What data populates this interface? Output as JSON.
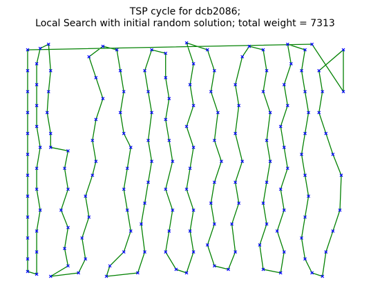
{
  "chart_data": {
    "type": "line",
    "title": [
      "TSP cycle for dcb2086;",
      "Local Search with initial random solution; total weight = 7313"
    ],
    "closed": true,
    "axis": false,
    "marker": "x",
    "x": [
      2,
      2,
      2,
      2,
      2,
      2,
      2,
      2,
      2,
      2,
      2,
      2,
      15,
      15,
      15,
      20,
      15,
      15,
      20,
      15,
      15,
      15,
      15,
      20,
      32,
      35,
      32,
      30,
      35,
      35,
      60,
      55,
      60,
      50,
      60,
      55,
      60,
      35,
      75,
      85,
      80,
      90,
      85,
      95,
      100,
      95,
      100,
      110,
      100,
      90,
      110,
      130,
      135,
      140,
      135,
      140,
      150,
      145,
      140,
      145,
      150,
      140,
      120,
      115,
      160,
      170,
      165,
      170,
      175,
      180,
      175,
      180,
      175,
      170,
      180,
      200,
      200,
      205,
      200,
      205,
      210,
      200,
      210,
      205,
      200,
      215,
      230,
      240,
      235,
      240,
      230,
      235,
      240,
      230,
      240,
      235,
      240,
      230,
      260,
      270,
      265,
      275,
      270,
      280,
      270,
      265,
      270,
      260,
      270,
      290,
      300,
      295,
      305,
      300,
      310,
      300,
      305,
      300,
      310,
      320,
      340,
      345,
      340,
      350,
      345,
      350,
      345,
      340,
      345,
      335,
      340,
      365,
      370,
      360,
      370,
      365,
      375,
      370,
      365,
      375,
      370,
      380,
      375,
      400,
      395,
      400,
      405,
      400,
      395,
      400,
      405,
      400,
      395,
      400,
      410,
      425,
      430,
      440,
      450,
      452,
      440,
      430,
      420,
      425,
      420,
      455,
      455,
      410
    ],
    "series": [
      {
        "color": "#008000",
        "marker_color": "#0000ff",
        "values": [
          330,
          300,
          270,
          240,
          210,
          180,
          150,
          120,
          90,
          60,
          30,
          12,
          8,
          40,
          70,
          100,
          130,
          160,
          190,
          220,
          250,
          280,
          310,
          332,
          338,
          300,
          270,
          240,
          210,
          190,
          185,
          160,
          130,
          100,
          75,
          45,
          20,
          5,
          10,
          30,
          60,
          90,
          120,
          150,
          170,
          200,
          230,
          260,
          290,
          320,
          335,
          330,
          300,
          270,
          240,
          210,
          190,
          160,
          130,
          100,
          70,
          40,
          20,
          5,
          10,
          40,
          80,
          110,
          140,
          170,
          200,
          240,
          270,
          300,
          330,
          325,
          290,
          260,
          230,
          200,
          170,
          130,
          100,
          70,
          40,
          15,
          10,
          40,
          70,
          100,
          130,
          160,
          190,
          220,
          250,
          280,
          310,
          340,
          330,
          300,
          270,
          240,
          200,
          170,
          140,
          110,
          80,
          50,
          20,
          15,
          40,
          80,
          110,
          140,
          170,
          210,
          250,
          280,
          320,
          335,
          330,
          300,
          270,
          240,
          200,
          170,
          140,
          110,
          80,
          50,
          15,
          10,
          40,
          70,
          100,
          130,
          160,
          190,
          220,
          250,
          280,
          310,
          338,
          330,
          300,
          270,
          240,
          210,
          180,
          150,
          120,
          90,
          60,
          30,
          10,
          5,
          40,
          70,
          100,
          150,
          180,
          210,
          240,
          270,
          300,
          330,
          270,
          338
        ]
      }
    ]
  }
}
